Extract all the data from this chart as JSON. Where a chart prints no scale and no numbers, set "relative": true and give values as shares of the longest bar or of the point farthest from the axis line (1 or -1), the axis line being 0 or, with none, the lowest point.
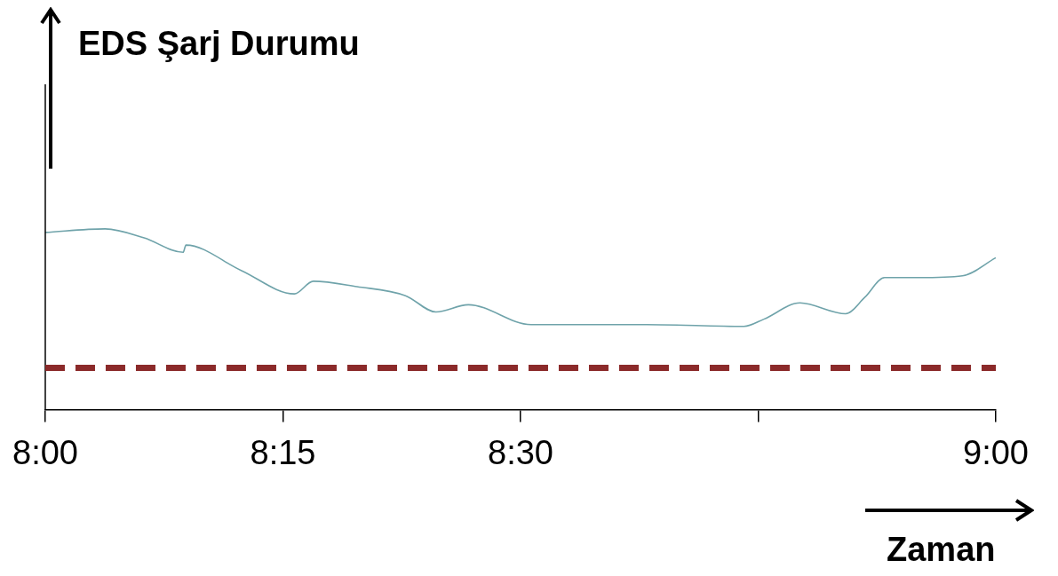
{
  "chart_data": {
    "type": "line",
    "relative": true,
    "xlabel": "Zaman",
    "ylabel": "EDS Şarj Durumu",
    "xlim": [
      8,
      9
    ],
    "xticks": [
      {
        "value": 8,
        "label": "8:00"
      },
      {
        "value": 8.25,
        "label": "8:15"
      },
      {
        "value": 8.5,
        "label": "8:30"
      },
      {
        "value": 8.75,
        "label": null
      },
      {
        "value": 9,
        "label": "9:00"
      }
    ],
    "series": [
      {
        "color": "#6fa3aa",
        "x": [
          8,
          8.063,
          8.104,
          8.145,
          8.148,
          8.206,
          8.262,
          8.282,
          8.328,
          8.379,
          8.411,
          8.445,
          8.511,
          8.633,
          8.735,
          8.756,
          8.794,
          8.842,
          8.862,
          8.883,
          8.919,
          8.965,
          9
        ],
        "values": [
          0.98,
          1,
          0.95,
          0.87,
          0.91,
          0.77,
          0.64,
          0.71,
          0.68,
          0.63,
          0.54,
          0.58,
          0.47,
          0.47,
          0.46,
          0.5,
          0.59,
          0.53,
          0.62,
          0.73,
          0.73,
          0.74,
          0.84
        ]
      }
    ],
    "ref_lines": [
      {
        "axis": "y",
        "value": 0.23,
        "color": "#8b2a2a",
        "line_style": "dashed"
      }
    ],
    "grid": false,
    "legend": false,
    "marker": "none",
    "line_style": "solid"
  }
}
